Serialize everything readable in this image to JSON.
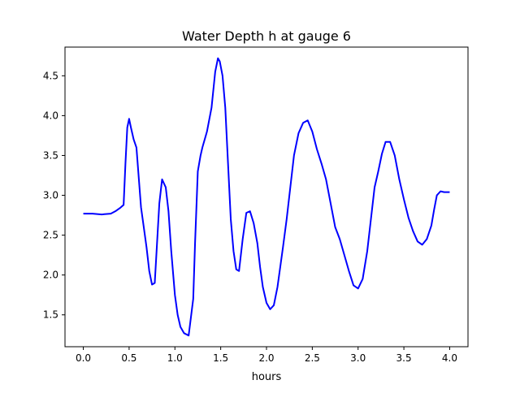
{
  "chart_data": {
    "type": "line",
    "title": "Water Depth h at gauge 6",
    "xlabel": "hours",
    "ylabel": "",
    "xlim": [
      -0.2,
      4.2
    ],
    "ylim": [
      1.1,
      4.86
    ],
    "xticks": [
      0.0,
      0.5,
      1.0,
      1.5,
      2.0,
      2.5,
      3.0,
      3.5,
      4.0
    ],
    "xtick_labels": [
      "0.0",
      "0.5",
      "1.0",
      "1.5",
      "2.0",
      "2.5",
      "3.0",
      "3.5",
      "4.0"
    ],
    "yticks": [
      1.5,
      2.0,
      2.5,
      3.0,
      3.5,
      4.0,
      4.5
    ],
    "ytick_labels": [
      "1.5",
      "2.0",
      "2.5",
      "3.0",
      "3.5",
      "4.0",
      "4.5"
    ],
    "grid": false,
    "series": [
      {
        "color": "#0000ff",
        "x": [
          0.0,
          0.1,
          0.2,
          0.3,
          0.35,
          0.4,
          0.44,
          0.46,
          0.48,
          0.5,
          0.52,
          0.55,
          0.58,
          0.6,
          0.63,
          0.66,
          0.69,
          0.72,
          0.75,
          0.78,
          0.8,
          0.83,
          0.86,
          0.9,
          0.93,
          0.96,
          1.0,
          1.03,
          1.06,
          1.1,
          1.15,
          1.2,
          1.22,
          1.25,
          1.28,
          1.3,
          1.35,
          1.4,
          1.44,
          1.47,
          1.49,
          1.52,
          1.55,
          1.58,
          1.61,
          1.64,
          1.67,
          1.7,
          1.74,
          1.78,
          1.82,
          1.86,
          1.9,
          1.93,
          1.96,
          2.0,
          2.04,
          2.08,
          2.12,
          2.15,
          2.18,
          2.22,
          2.26,
          2.3,
          2.35,
          2.4,
          2.45,
          2.5,
          2.55,
          2.6,
          2.65,
          2.7,
          2.75,
          2.8,
          2.85,
          2.9,
          2.95,
          3.0,
          3.05,
          3.1,
          3.14,
          3.18,
          3.22,
          3.26,
          3.3,
          3.35,
          3.4,
          3.45,
          3.5,
          3.55,
          3.6,
          3.65,
          3.7,
          3.75,
          3.8,
          3.83,
          3.86,
          3.9,
          3.94,
          3.98,
          4.0
        ],
        "y": [
          2.77,
          2.77,
          2.76,
          2.77,
          2.8,
          2.84,
          2.88,
          3.4,
          3.85,
          3.96,
          3.85,
          3.7,
          3.6,
          3.3,
          2.85,
          2.6,
          2.35,
          2.05,
          1.88,
          1.9,
          2.3,
          2.9,
          3.2,
          3.1,
          2.8,
          2.3,
          1.75,
          1.5,
          1.35,
          1.27,
          1.24,
          1.7,
          2.4,
          3.3,
          3.5,
          3.6,
          3.8,
          4.1,
          4.55,
          4.72,
          4.68,
          4.5,
          4.1,
          3.4,
          2.7,
          2.3,
          2.07,
          2.05,
          2.45,
          2.78,
          2.8,
          2.65,
          2.4,
          2.1,
          1.85,
          1.65,
          1.57,
          1.62,
          1.85,
          2.1,
          2.35,
          2.7,
          3.1,
          3.5,
          3.78,
          3.91,
          3.94,
          3.8,
          3.58,
          3.4,
          3.2,
          2.9,
          2.6,
          2.45,
          2.25,
          2.05,
          1.87,
          1.83,
          1.95,
          2.3,
          2.7,
          3.1,
          3.3,
          3.52,
          3.67,
          3.67,
          3.5,
          3.2,
          2.95,
          2.72,
          2.55,
          2.42,
          2.38,
          2.45,
          2.62,
          2.82,
          3.0,
          3.05,
          3.04,
          3.04,
          3.04
        ]
      }
    ]
  }
}
